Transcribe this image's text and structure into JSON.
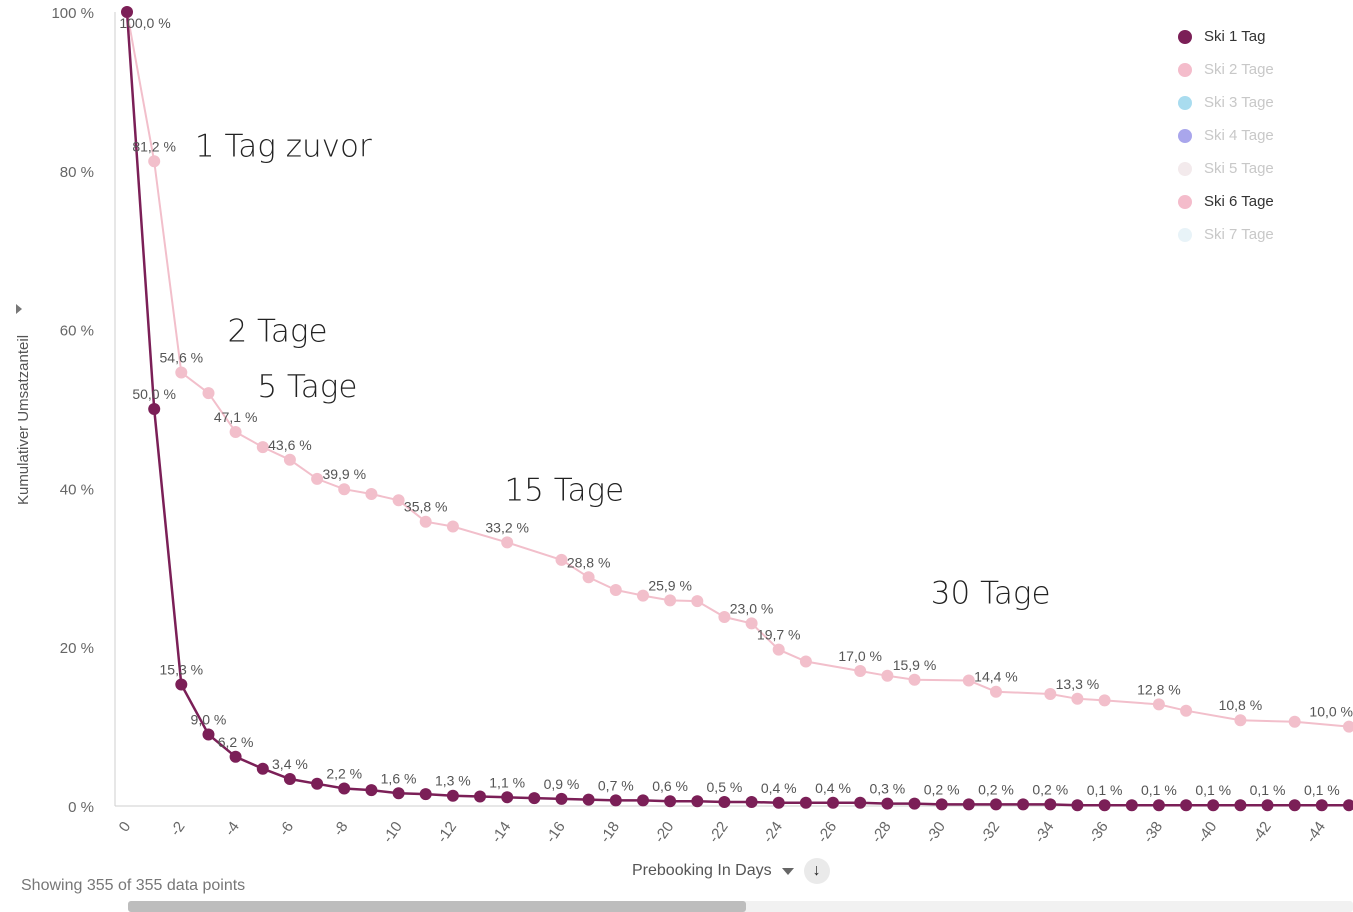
{
  "chart_data": {
    "type": "line",
    "title": "",
    "xlabel": "Prebooking In Days",
    "ylabel": "Kumulativer Umsatzanteil",
    "xlim": [
      0.5,
      -45.4
    ],
    "ylim": [
      0,
      100
    ],
    "x_tick_labels": [
      "0",
      "-2",
      "-4",
      "-6",
      "-8",
      "-10",
      "-12",
      "-14",
      "-16",
      "-18",
      "-20",
      "-22",
      "-24",
      "-26",
      "-28",
      "-30",
      "-32",
      "-34",
      "-36",
      "-38",
      "-40",
      "-42",
      "-44"
    ],
    "y_tick_labels": [
      "0 %",
      "20 %",
      "40 %",
      "60 %",
      "80 %",
      "100 %"
    ],
    "series": [
      {
        "name": "Ski 1 Tag",
        "color": "#7b1f57",
        "x": [
          0,
          -1,
          -2,
          -3,
          -4,
          -5,
          -6,
          -7,
          -8,
          -9,
          -10,
          -11,
          -12,
          -13,
          -14,
          -15,
          -16,
          -17,
          -18,
          -19,
          -20,
          -21,
          -22,
          -23,
          -24,
          -25,
          -26,
          -27,
          -28,
          -29,
          -30,
          -31,
          -32,
          -33,
          -34,
          -35,
          -36,
          -37,
          -38,
          -39,
          -40,
          -41,
          -42,
          -43,
          -44,
          -45
        ],
        "y": [
          100.0,
          50.0,
          15.3,
          9.0,
          6.2,
          4.7,
          3.4,
          2.8,
          2.2,
          2.0,
          1.6,
          1.5,
          1.3,
          1.2,
          1.1,
          1.0,
          0.9,
          0.8,
          0.7,
          0.7,
          0.6,
          0.6,
          0.5,
          0.5,
          0.4,
          0.4,
          0.4,
          0.4,
          0.3,
          0.3,
          0.2,
          0.2,
          0.2,
          0.2,
          0.2,
          0.1,
          0.1,
          0.1,
          0.1,
          0.1,
          0.1,
          0.1,
          0.1,
          0.1,
          0.1,
          0.1
        ],
        "labels": [
          {
            "x": 0,
            "text": "100,0 %"
          },
          {
            "x": -1,
            "text": "50,0 %"
          },
          {
            "x": -2,
            "text": "15,3 %"
          },
          {
            "x": -3,
            "text": "9,0 %"
          },
          {
            "x": -4,
            "text": "6,2 %"
          },
          {
            "x": -6,
            "text": "3,4 %"
          },
          {
            "x": -8,
            "text": "2,2 %"
          },
          {
            "x": -10,
            "text": "1,6 %"
          },
          {
            "x": -12,
            "text": "1,3 %"
          },
          {
            "x": -14,
            "text": "1,1 %"
          },
          {
            "x": -16,
            "text": "0,9 %"
          },
          {
            "x": -18,
            "text": "0,7 %"
          },
          {
            "x": -20,
            "text": "0,6 %"
          },
          {
            "x": -22,
            "text": "0,5 %"
          },
          {
            "x": -24,
            "text": "0,4 %"
          },
          {
            "x": -26,
            "text": "0,4 %"
          },
          {
            "x": -28,
            "text": "0,3 %"
          },
          {
            "x": -30,
            "text": "0,2 %"
          },
          {
            "x": -32,
            "text": "0,2 %"
          },
          {
            "x": -34,
            "text": "0,2 %"
          },
          {
            "x": -36,
            "text": "0,1 %"
          },
          {
            "x": -38,
            "text": "0,1 %"
          },
          {
            "x": -40,
            "text": "0,1 %"
          },
          {
            "x": -42,
            "text": "0,1 %"
          },
          {
            "x": -44,
            "text": "0,1 %"
          }
        ]
      },
      {
        "name": "Ski 6 Tage",
        "color": "#f2bfcb",
        "x": [
          0,
          -1,
          -2,
          -3,
          -4,
          -5,
          -6,
          -7,
          -8,
          -9,
          -10,
          -11,
          -12,
          -14,
          -16,
          -17,
          -18,
          -19,
          -20,
          -21,
          -22,
          -23,
          -24,
          -25,
          -27,
          -28,
          -29,
          -31,
          -32,
          -34,
          -35,
          -36,
          -38,
          -39,
          -41,
          -43,
          -45
        ],
        "y": [
          100.0,
          81.2,
          54.6,
          52.0,
          47.1,
          45.2,
          43.6,
          41.2,
          39.9,
          39.3,
          38.5,
          35.8,
          35.2,
          33.2,
          31.0,
          28.8,
          27.2,
          26.5,
          25.9,
          25.8,
          23.8,
          23.0,
          19.7,
          18.2,
          17.0,
          16.4,
          15.9,
          15.8,
          14.4,
          14.1,
          13.5,
          13.3,
          12.8,
          12.0,
          10.8,
          10.6,
          10.0
        ],
        "labels": [
          {
            "x": -1,
            "text": "81,2 %"
          },
          {
            "x": -2,
            "text": "54,6 %"
          },
          {
            "x": -4,
            "text": "47,1 %"
          },
          {
            "x": -6,
            "text": "43,6 %"
          },
          {
            "x": -8,
            "text": "39,9 %"
          },
          {
            "x": -11,
            "text": "35,8 %"
          },
          {
            "x": -14,
            "text": "33,2 %"
          },
          {
            "x": -17,
            "text": "28,8 %"
          },
          {
            "x": -20,
            "text": "25,9 %"
          },
          {
            "x": -23,
            "text": "23,0 %"
          },
          {
            "x": -24,
            "text": "19,7 %"
          },
          {
            "x": -27,
            "text": "17,0 %"
          },
          {
            "x": -29,
            "text": "15,9 %"
          },
          {
            "x": -32,
            "text": "14,4 %"
          },
          {
            "x": -35,
            "text": "13,3 %"
          },
          {
            "x": -38,
            "text": "12,8 %"
          },
          {
            "x": -41,
            "text": "10,8 %"
          },
          {
            "x": -45,
            "text": "10,0 %"
          }
        ]
      }
    ],
    "annotations": [
      {
        "text": "1 Tag zuvor",
        "x": -2.5,
        "y": 81.8
      },
      {
        "text": "2 Tage",
        "x": -3.7,
        "y": 58.5
      },
      {
        "text": "5 Tage",
        "x": -4.8,
        "y": 51.5
      },
      {
        "text": "15 Tage",
        "x": -13.9,
        "y": 38.5
      },
      {
        "text": "30 Tage",
        "x": -29.6,
        "y": 25.5
      }
    ],
    "legend_position": "top-right",
    "grid": false
  },
  "legend": {
    "items": [
      {
        "label": "Ski 1 Tag",
        "color": "#7b1f57",
        "active": true
      },
      {
        "label": "Ski 2 Tage",
        "color": "#f4bccb",
        "active": false
      },
      {
        "label": "Ski 3 Tage",
        "color": "#a9dcef",
        "active": false
      },
      {
        "label": "Ski 4 Tage",
        "color": "#a9a6ec",
        "active": false
      },
      {
        "label": "Ski 5 Tage",
        "color": "#f3eaec",
        "active": false
      },
      {
        "label": "Ski 6 Tage",
        "color": "#f4bccb",
        "active": true
      },
      {
        "label": "Ski 7 Tage",
        "color": "#e8f3f8",
        "active": false
      }
    ],
    "inactive_text_color": "#c8c8c8",
    "active_text_color": "#333333"
  },
  "status": {
    "text": "Showing 355 of 355 data points"
  },
  "sort_icon": "arrow-down-icon"
}
